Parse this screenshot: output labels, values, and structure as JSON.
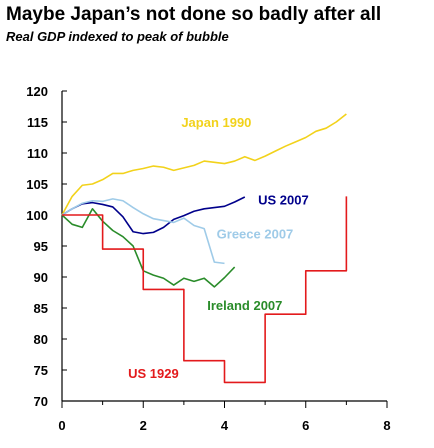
{
  "chart_data": {
    "type": "line",
    "title": "Maybe Japan’s not done so badly after all",
    "subtitle": "Real GDP indexed to peak of bubble",
    "xlabel": "",
    "ylabel": "",
    "xlim": [
      0,
      8
    ],
    "ylim": [
      70,
      120
    ],
    "xticks": [
      "0",
      "2",
      "4",
      "6",
      "8"
    ],
    "yticks": [
      "70",
      "75",
      "80",
      "85",
      "90",
      "95",
      "100",
      "105",
      "110",
      "115",
      "120"
    ],
    "grid": false,
    "series": [
      {
        "name": "Japan 1990",
        "color": "#f2d21b",
        "label_at": [
          3.8,
          115
        ],
        "points": [
          [
            0,
            100
          ],
          [
            0.25,
            103
          ],
          [
            0.5,
            104.8
          ],
          [
            0.75,
            105
          ],
          [
            1,
            105.7
          ],
          [
            1.25,
            106.7
          ],
          [
            1.5,
            106.7
          ],
          [
            1.75,
            107.2
          ],
          [
            2,
            107.5
          ],
          [
            2.25,
            107.9
          ],
          [
            2.5,
            107.7
          ],
          [
            2.75,
            107.2
          ],
          [
            3,
            107.6
          ],
          [
            3.25,
            108
          ],
          [
            3.5,
            108.7
          ],
          [
            3.75,
            108.5
          ],
          [
            4,
            108.3
          ],
          [
            4.25,
            108.7
          ],
          [
            4.5,
            109.4
          ],
          [
            4.75,
            108.8
          ],
          [
            5,
            109.5
          ],
          [
            5.25,
            110.3
          ],
          [
            5.5,
            111.1
          ],
          [
            5.75,
            111.8
          ],
          [
            6,
            112.5
          ],
          [
            6.25,
            113.5
          ],
          [
            6.5,
            114
          ],
          [
            6.75,
            115
          ],
          [
            7,
            116.3
          ]
        ]
      },
      {
        "name": "US 2007",
        "color": "#00008b",
        "label_at": [
          5.45,
          102.5
        ],
        "points": [
          [
            0,
            100
          ],
          [
            0.25,
            101
          ],
          [
            0.5,
            101.8
          ],
          [
            0.75,
            102
          ],
          [
            1,
            101.7
          ],
          [
            1.25,
            101.3
          ],
          [
            1.5,
            99.7
          ],
          [
            1.75,
            97.3
          ],
          [
            2,
            97
          ],
          [
            2.25,
            97.2
          ],
          [
            2.5,
            98
          ],
          [
            2.75,
            99.3
          ],
          [
            3,
            99.9
          ],
          [
            3.25,
            100.6
          ],
          [
            3.5,
            101
          ],
          [
            3.75,
            101.2
          ],
          [
            4,
            101.4
          ],
          [
            4.25,
            102.1
          ],
          [
            4.5,
            102.9
          ]
        ]
      },
      {
        "name": "Greece 2007",
        "color": "#9fcbe8",
        "label_at": [
          4.75,
          97
        ],
        "points": [
          [
            0,
            100
          ],
          [
            0.25,
            101
          ],
          [
            0.5,
            101.9
          ],
          [
            0.75,
            102.3
          ],
          [
            1,
            102.2
          ],
          [
            1.25,
            102.6
          ],
          [
            1.5,
            102.3
          ],
          [
            1.75,
            101.2
          ],
          [
            2,
            100.2
          ],
          [
            2.25,
            99.4
          ],
          [
            2.5,
            99.1
          ],
          [
            2.75,
            98.8
          ],
          [
            3,
            99.5
          ],
          [
            3.25,
            98.3
          ],
          [
            3.5,
            97.8
          ],
          [
            3.75,
            92.4
          ],
          [
            4,
            92.2
          ]
        ]
      },
      {
        "name": "Ireland 2007",
        "color": "#2a8c2a",
        "label_at": [
          4.5,
          85.5
        ],
        "points": [
          [
            0,
            100
          ],
          [
            0.25,
            98.5
          ],
          [
            0.5,
            98
          ],
          [
            0.75,
            101
          ],
          [
            1,
            99
          ],
          [
            1.25,
            97.5
          ],
          [
            1.5,
            96.5
          ],
          [
            1.75,
            95
          ],
          [
            2,
            91
          ],
          [
            2.25,
            90.3
          ],
          [
            2.5,
            89.8
          ],
          [
            2.75,
            88.7
          ],
          [
            3,
            89.8
          ],
          [
            3.25,
            89.3
          ],
          [
            3.5,
            89.8
          ],
          [
            3.75,
            88.4
          ],
          [
            4,
            89.9
          ],
          [
            4.25,
            91.6
          ]
        ]
      },
      {
        "name": "US 1929",
        "color": "#e31a1c",
        "label_at": [
          2.25,
          74.5
        ],
        "step": true,
        "points": [
          [
            0,
            100
          ],
          [
            1,
            94.5
          ],
          [
            2,
            88
          ],
          [
            3,
            76.5
          ],
          [
            4,
            73
          ],
          [
            5,
            84
          ],
          [
            6,
            91
          ],
          [
            7,
            103
          ]
        ]
      }
    ]
  }
}
